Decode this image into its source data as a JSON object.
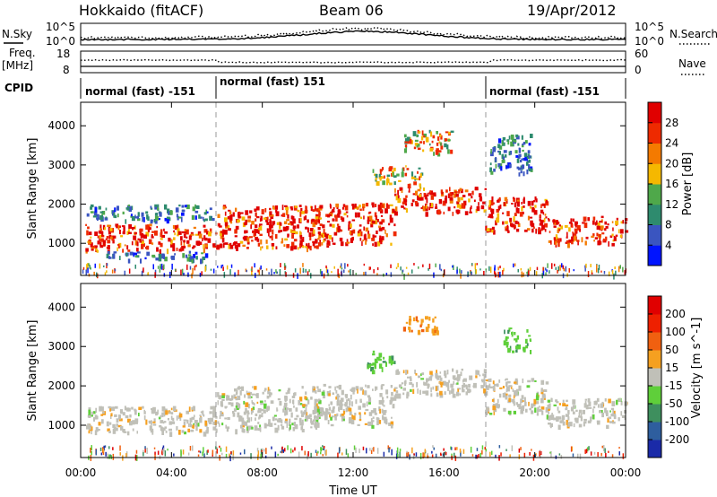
{
  "header": {
    "station": "Hokkaido (fitACF)",
    "beam": "Beam 06",
    "date": "19/Apr/2012"
  },
  "panels": {
    "nsky_label": "N.Sky",
    "nsearch_label": "N.Search",
    "noise_ticks": [
      "10^5",
      "10^0"
    ],
    "freq_label_1": "Freq.",
    "freq_label_2": "[MHz]",
    "freq_ticks": [
      "18",
      "8"
    ],
    "nave_label": "Nave",
    "nave_ticks": [
      "60",
      "0"
    ],
    "cpid_label": "CPID",
    "cpid_segments": [
      {
        "label": "normal (fast) -151",
        "start_h": 0,
        "end_h": 6
      },
      {
        "label": "normal (fast) 151",
        "start_h": 6,
        "end_h": 18
      },
      {
        "label": "normal (fast) -151",
        "start_h": 18,
        "end_h": 24
      }
    ]
  },
  "chart_data": [
    {
      "type": "heatmap",
      "title": "",
      "parameter": "Power",
      "xlabel": "",
      "ylabel": "Slant Range [km]",
      "xlim": [
        0,
        24
      ],
      "ylim": [
        180,
        4600
      ],
      "yticks": [
        "1000",
        "2000",
        "3000",
        "4000"
      ],
      "colorbar": {
        "label": "Power [dB]",
        "ticks": [
          "4",
          "8",
          "12",
          "16",
          "20",
          "24",
          "28"
        ],
        "colors": [
          "#0014ff",
          "#3a55c0",
          "#2e8b6e",
          "#4fa84a",
          "#f5b800",
          "#f47a00",
          "#ee2a00",
          "#e00000"
        ]
      },
      "echo_bands": [
        {
          "t0": 0.2,
          "t1": 6.0,
          "r0": 820,
          "r1": 1500,
          "level": "high"
        },
        {
          "t0": 0.2,
          "t1": 5.8,
          "r0": 1600,
          "r1": 2000,
          "level": "low"
        },
        {
          "t0": 0.8,
          "t1": 5.5,
          "r0": 600,
          "r1": 820,
          "level": "low"
        },
        {
          "t0": 6.0,
          "t1": 10.5,
          "r0": 900,
          "r1": 2000,
          "level": "high"
        },
        {
          "t0": 10.2,
          "t1": 13.8,
          "r0": 1000,
          "r1": 2050,
          "level": "high"
        },
        {
          "t0": 13.8,
          "t1": 17.8,
          "r0": 1800,
          "r1": 2450,
          "level": "high"
        },
        {
          "t0": 17.8,
          "t1": 20.5,
          "r0": 1300,
          "r1": 2200,
          "level": "high"
        },
        {
          "t0": 20.5,
          "t1": 24.0,
          "r0": 1000,
          "r1": 1700,
          "level": "high"
        },
        {
          "t0": 14.2,
          "t1": 16.4,
          "r0": 3300,
          "r1": 3900,
          "level": "mid"
        },
        {
          "t0": 12.8,
          "t1": 15.0,
          "r0": 2500,
          "r1": 3000,
          "level": "mid"
        },
        {
          "t0": 18.0,
          "t1": 19.8,
          "r0": 2800,
          "r1": 3800,
          "level": "low"
        }
      ]
    },
    {
      "type": "heatmap",
      "title": "",
      "parameter": "Velocity",
      "xlabel": "Time UT",
      "ylabel": "Slant Range [km]",
      "xlim": [
        0,
        24
      ],
      "ylim": [
        180,
        4600
      ],
      "xticks": [
        "00:00",
        "04:00",
        "08:00",
        "12:00",
        "16:00",
        "20:00",
        "00:00"
      ],
      "yticks": [
        "1000",
        "2000",
        "3000",
        "4000"
      ],
      "colorbar": {
        "label": "Velocity [m s^-1]",
        "ticks": [
          "200",
          "100",
          "50",
          "15",
          "-15",
          "-50",
          "-100",
          "-200"
        ],
        "colors": [
          "#1a2aa8",
          "#2e5e9e",
          "#3e8f5e",
          "#5fcf3a",
          "#c0c0b8",
          "#f5a020",
          "#f06010",
          "#ee2000",
          "#e00000"
        ]
      },
      "echo_bands": [
        {
          "t0": 0.2,
          "t1": 6.0,
          "r0": 820,
          "r1": 1500,
          "level": "ground"
        },
        {
          "t0": 6.0,
          "t1": 10.5,
          "r0": 900,
          "r1": 2000,
          "level": "ground"
        },
        {
          "t0": 10.2,
          "t1": 13.8,
          "r0": 1000,
          "r1": 2050,
          "level": "ground"
        },
        {
          "t0": 13.8,
          "t1": 17.8,
          "r0": 1800,
          "r1": 2450,
          "level": "ground"
        },
        {
          "t0": 17.8,
          "t1": 20.5,
          "r0": 1300,
          "r1": 2200,
          "level": "ground"
        },
        {
          "t0": 20.5,
          "t1": 24.0,
          "r0": 1000,
          "r1": 1700,
          "level": "ground"
        },
        {
          "t0": 14.2,
          "t1": 15.8,
          "r0": 3400,
          "r1": 3800,
          "level": "away"
        },
        {
          "t0": 12.6,
          "t1": 13.8,
          "r0": 2400,
          "r1": 2900,
          "level": "toward"
        },
        {
          "t0": 18.6,
          "t1": 19.8,
          "r0": 2900,
          "r1": 3500,
          "level": "toward"
        }
      ]
    }
  ]
}
